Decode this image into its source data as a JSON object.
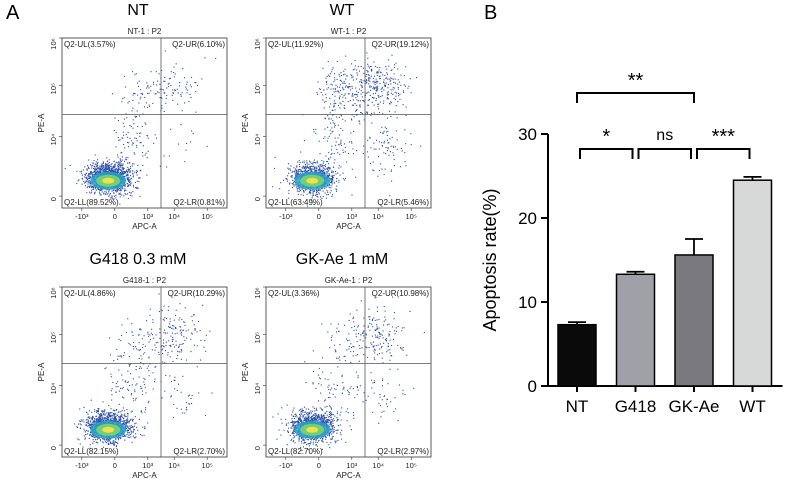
{
  "panels": {
    "a": "A",
    "b": "B"
  },
  "flow_plots": [
    {
      "title": "NT",
      "subtitle": "NT-1 : P2",
      "ul": "Q2-UL(3.57%)",
      "ur": "Q2-UR(6.10%)",
      "ll": "Q2-LL(89.52%)",
      "lr": "Q2-LR(0.81%)",
      "pct": {
        "ul": 3.57,
        "ur": 6.1,
        "ll": 89.52,
        "lr": 0.81
      }
    },
    {
      "title": "WT",
      "subtitle": "WT-1 : P2",
      "ul": "Q2-UL(11.92%)",
      "ur": "Q2-UR(19.12%)",
      "ll": "Q2-LL(63.49%)",
      "lr": "Q2-LR(5.46%)",
      "pct": {
        "ul": 11.92,
        "ur": 19.12,
        "ll": 63.49,
        "lr": 5.46
      }
    },
    {
      "title": "G418 0.3 mM",
      "subtitle": "G418-1 : P2",
      "ul": "Q2-UL(4.86%)",
      "ur": "Q2-UR(10.29%)",
      "ll": "Q2-LL(82.15%)",
      "lr": "Q2-LR(2.70%)",
      "pct": {
        "ul": 4.86,
        "ur": 10.29,
        "ll": 82.15,
        "lr": 2.7
      }
    },
    {
      "title": "GK-Ae 1 mM",
      "subtitle": "GK-Ae-1 : P2",
      "ul": "Q2-UL(3.36%)",
      "ur": "Q2-UR(10.98%)",
      "ll": "Q2-LL(82.70%)",
      "lr": "Q2-LR(2.97%)",
      "pct": {
        "ul": 3.36,
        "ur": 10.98,
        "ll": 82.7,
        "lr": 2.97
      }
    }
  ],
  "flow_axes": {
    "xlabel": "APC-A",
    "ylabel": "PE-A",
    "xticks": [
      "-10³",
      "0",
      "10³",
      "10⁴",
      "10⁵"
    ],
    "yticks": [
      "0",
      "10⁴",
      "10⁵",
      "10⁶"
    ],
    "xtick_exp": [
      "-10^3",
      "0",
      "10^3",
      "10^4",
      "10^5"
    ],
    "ytick_exp": [
      "0",
      "10^4",
      "10^5",
      "10^6"
    ]
  },
  "chart_data": {
    "type": "bar",
    "categories": [
      "NT",
      "G418",
      "GK-Ae",
      "WT"
    ],
    "values": [
      7.3,
      13.3,
      15.6,
      24.5
    ],
    "errors": [
      0.3,
      0.3,
      1.9,
      0.4
    ],
    "colors": [
      "#0a0a0a",
      "#a0a0a8",
      "#7a7a7e",
      "#d6d9d8"
    ],
    "ylabel": "Apoptosis rate(%)",
    "xlabel": "",
    "ylim": [
      0,
      30
    ],
    "yticks": [
      0,
      10,
      20,
      30
    ],
    "significance": [
      {
        "from": "NT",
        "to": "G418",
        "label": "*"
      },
      {
        "from": "G418",
        "to": "GK-Ae",
        "label": "ns"
      },
      {
        "from": "GK-Ae",
        "to": "WT",
        "label": "***"
      },
      {
        "from": "NT",
        "to": "GK-Ae",
        "label": "**"
      }
    ]
  }
}
